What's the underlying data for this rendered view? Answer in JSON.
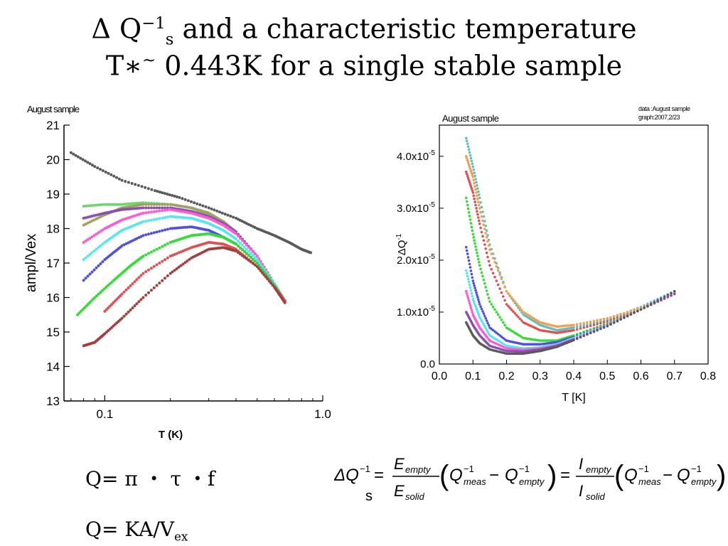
{
  "slide": {
    "title_line1_prefix": "Δ Q",
    "title_line1_sup": "−1",
    "title_line1_sub": "s",
    "title_line1_rest": " and a characteristic temperature",
    "title_line2_prefix": "T∗",
    "title_line2_sup": "~",
    "title_line2_rest": " 0.443K for a single stable sample"
  },
  "formulas": {
    "q1": "Q= π ・ τ ・f",
    "q2_main": "Q= KA/V",
    "q2_sub": "ex",
    "big": {
      "lhs": "ΔQ",
      "lhs_sup": "−1",
      "lhs_sub": "s",
      "eq": "=",
      "frac1_num": "E",
      "frac1_num_sub": "empty",
      "frac1_den": "E",
      "frac1_den_sub": "solid",
      "q_meas": "Q",
      "q_meas_sup": "−1",
      "q_meas_sub": "meas",
      "minus": "−",
      "q_empty": "Q",
      "q_empty_sup": "−1",
      "q_empty_sub": "empty",
      "frac2_num": "I",
      "frac2_num_sub": "empty",
      "frac2_den": "I",
      "frac2_den_sub": "solid"
    }
  },
  "colors": {
    "gray": "#5a5a5a",
    "green": "#6fd66f",
    "olive": "#a0a060",
    "purple": "#8a4fb0",
    "pink": "#ff5ad2",
    "cyan": "#55e6f0",
    "blue": "#5050e0",
    "lime": "#33dd33",
    "red": "#e05050",
    "brown": "#a04040",
    "orange": "#f0a050",
    "teal": "#5fbfc0"
  },
  "chart_data": [
    {
      "type": "scatter",
      "title": "August sample",
      "xlabel": "T (K)",
      "ylabel": "ampl/Vex",
      "xscale": "log",
      "xlim": [
        0.065,
        1.0
      ],
      "ylim": [
        13,
        21
      ],
      "xticks": [
        "0.1",
        "1.0"
      ],
      "yticks": [
        "13",
        "14",
        "15",
        "16",
        "17",
        "18",
        "19",
        "20",
        "21"
      ],
      "series": [
        {
          "color": "gray",
          "x": [
            0.07,
            0.09,
            0.12,
            0.17,
            0.22,
            0.3,
            0.4,
            0.5,
            0.6,
            0.7,
            0.8,
            0.88
          ],
          "y": [
            20.2,
            19.8,
            19.4,
            19.1,
            18.9,
            18.6,
            18.3,
            18.0,
            17.8,
            17.6,
            17.4,
            17.3
          ]
        },
        {
          "color": "green",
          "x": [
            0.08,
            0.1,
            0.12,
            0.15,
            0.2,
            0.25,
            0.3,
            0.35,
            0.4,
            0.5,
            0.6,
            0.67
          ],
          "y": [
            18.65,
            18.7,
            18.7,
            18.75,
            18.7,
            18.6,
            18.4,
            18.2,
            17.9,
            17.2,
            16.4,
            15.9
          ]
        },
        {
          "color": "olive",
          "x": [
            0.08,
            0.1,
            0.12,
            0.15,
            0.2,
            0.25,
            0.3,
            0.35,
            0.4,
            0.5,
            0.6,
            0.67
          ],
          "y": [
            18.1,
            18.4,
            18.6,
            18.7,
            18.7,
            18.6,
            18.45,
            18.2,
            17.9,
            17.2,
            16.4,
            15.9
          ]
        },
        {
          "color": "purple",
          "x": [
            0.08,
            0.1,
            0.12,
            0.15,
            0.2,
            0.25,
            0.3,
            0.35,
            0.4,
            0.5,
            0.6,
            0.67
          ],
          "y": [
            18.3,
            18.45,
            18.55,
            18.6,
            18.6,
            18.5,
            18.35,
            18.15,
            17.9,
            17.2,
            16.4,
            15.9
          ]
        },
        {
          "color": "pink",
          "x": [
            0.08,
            0.1,
            0.12,
            0.15,
            0.2,
            0.25,
            0.3,
            0.35,
            0.4,
            0.5,
            0.6,
            0.67
          ],
          "y": [
            17.6,
            18.0,
            18.25,
            18.45,
            18.55,
            18.45,
            18.3,
            18.1,
            17.85,
            17.2,
            16.4,
            15.9
          ]
        },
        {
          "color": "cyan",
          "x": [
            0.08,
            0.1,
            0.12,
            0.15,
            0.2,
            0.25,
            0.3,
            0.35,
            0.4,
            0.5,
            0.6,
            0.67
          ],
          "y": [
            17.1,
            17.6,
            17.95,
            18.2,
            18.35,
            18.3,
            18.15,
            17.95,
            17.7,
            17.1,
            16.4,
            15.9
          ]
        },
        {
          "color": "blue",
          "x": [
            0.08,
            0.1,
            0.12,
            0.15,
            0.2,
            0.25,
            0.3,
            0.35,
            0.4,
            0.5,
            0.6,
            0.67
          ],
          "y": [
            16.5,
            17.1,
            17.5,
            17.8,
            18.0,
            18.05,
            17.95,
            17.75,
            17.55,
            17.0,
            16.35,
            15.9
          ]
        },
        {
          "color": "lime",
          "x": [
            0.075,
            0.09,
            0.11,
            0.13,
            0.15,
            0.2,
            0.25,
            0.3,
            0.35,
            0.4,
            0.5,
            0.6,
            0.67
          ],
          "y": [
            15.5,
            16.0,
            16.5,
            16.9,
            17.2,
            17.6,
            17.8,
            17.85,
            17.75,
            17.55,
            17.0,
            16.35,
            15.9
          ]
        },
        {
          "color": "red",
          "x": [
            0.1,
            0.12,
            0.15,
            0.2,
            0.25,
            0.3,
            0.35,
            0.4,
            0.5,
            0.6,
            0.67
          ],
          "y": [
            15.6,
            16.1,
            16.7,
            17.2,
            17.45,
            17.6,
            17.55,
            17.4,
            16.9,
            16.3,
            15.9
          ]
        },
        {
          "color": "brown",
          "x": [
            0.08,
            0.09,
            0.1,
            0.12,
            0.15,
            0.2,
            0.25,
            0.3,
            0.35,
            0.4,
            0.5,
            0.6,
            0.67
          ],
          "y": [
            14.6,
            14.7,
            14.95,
            15.4,
            16.0,
            16.7,
            17.15,
            17.4,
            17.45,
            17.35,
            16.9,
            16.3,
            15.85
          ]
        }
      ]
    },
    {
      "type": "scatter",
      "title": "August sample",
      "note_line1": "data :August sample",
      "note_line2": "graph:2007,2/23",
      "xlabel": "T [K]",
      "ylabel": "ΔQ",
      "ylabel_sup": "-1",
      "xlim": [
        0.0,
        0.8
      ],
      "ylim": [
        0.0,
        4.6e-05
      ],
      "xticks": [
        "0.0",
        "0.1",
        "0.2",
        "0.3",
        "0.4",
        "0.5",
        "0.6",
        "0.7",
        "0.8"
      ],
      "yticks": [
        {
          "base": "0.0",
          "exp": ""
        },
        {
          "base": "1.0x10",
          "exp": "-5"
        },
        {
          "base": "2.0x10",
          "exp": "-5"
        },
        {
          "base": "3.0x10",
          "exp": "-5"
        },
        {
          "base": "4.0x10",
          "exp": "-5"
        }
      ],
      "series": [
        {
          "color": "teal",
          "x": [
            0.08,
            0.1,
            0.12,
            0.15,
            0.2,
            0.25,
            0.3,
            0.35,
            0.4,
            0.5,
            0.6,
            0.7
          ],
          "y": [
            4.35e-05,
            3.8e-05,
            3.2e-05,
            2.3e-05,
            1.4e-05,
            9.5e-06,
            7.5e-06,
            6.5e-06,
            7e-06,
            8.5e-06,
            1.1e-05,
            1.4e-05
          ]
        },
        {
          "color": "orange",
          "x": [
            0.08,
            0.1,
            0.12,
            0.15,
            0.2,
            0.25,
            0.3,
            0.35,
            0.4,
            0.5,
            0.6,
            0.7
          ],
          "y": [
            4e-05,
            3.6e-05,
            3e-05,
            2.2e-05,
            1.4e-05,
            1e-05,
            8e-06,
            7.2e-06,
            7.5e-06,
            8.8e-06,
            1.08e-05,
            1.35e-05
          ]
        },
        {
          "color": "red",
          "x": [
            0.08,
            0.1,
            0.12,
            0.15,
            0.2,
            0.25,
            0.3,
            0.35,
            0.4,
            0.5,
            0.6,
            0.7
          ],
          "y": [
            3.7e-05,
            3.3e-05,
            2.7e-05,
            1.9e-05,
            1.15e-05,
            8e-06,
            6.5e-06,
            6e-06,
            6.5e-06,
            8.2e-06,
            1.05e-05,
            1.35e-05
          ]
        },
        {
          "color": "lime",
          "x": [
            0.08,
            0.1,
            0.12,
            0.15,
            0.2,
            0.25,
            0.3,
            0.35,
            0.4,
            0.5,
            0.6,
            0.7
          ],
          "y": [
            3.2e-05,
            2.5e-05,
            1.9e-05,
            1.2e-05,
            7e-06,
            5e-06,
            4.5e-06,
            4.5e-06,
            5.5e-06,
            7.8e-06,
            1.05e-05,
            1.35e-05
          ]
        },
        {
          "color": "blue",
          "x": [
            0.08,
            0.1,
            0.12,
            0.15,
            0.2,
            0.25,
            0.3,
            0.35,
            0.4,
            0.5,
            0.6,
            0.7
          ],
          "y": [
            2.25e-05,
            1.6e-05,
            1.15e-05,
            7e-06,
            4.5e-06,
            3.8e-06,
            3.8e-06,
            4.2e-06,
            5.2e-06,
            7.6e-06,
            1.05e-05,
            1.35e-05
          ]
        },
        {
          "color": "cyan",
          "x": [
            0.08,
            0.1,
            0.12,
            0.15,
            0.2,
            0.25,
            0.3,
            0.35,
            0.4,
            0.5,
            0.6,
            0.7
          ],
          "y": [
            1.8e-05,
            1.25e-05,
            9e-06,
            5.5e-06,
            3.5e-06,
            3e-06,
            3.2e-06,
            3.8e-06,
            5e-06,
            7.5e-06,
            1.05e-05,
            1.35e-05
          ]
        },
        {
          "color": "pink",
          "x": [
            0.08,
            0.1,
            0.12,
            0.15,
            0.2,
            0.25,
            0.3,
            0.35,
            0.4,
            0.5,
            0.6,
            0.7
          ],
          "y": [
            1.4e-05,
            9.5e-06,
            7e-06,
            4.5e-06,
            3e-06,
            2.7e-06,
            3e-06,
            3.6e-06,
            4.8e-06,
            7.4e-06,
            1.05e-05,
            1.35e-05
          ]
        },
        {
          "color": "purple",
          "x": [
            0.08,
            0.1,
            0.12,
            0.15,
            0.2,
            0.25,
            0.3,
            0.35,
            0.4,
            0.5,
            0.6,
            0.7
          ],
          "y": [
            1e-05,
            7.5e-06,
            5.5e-06,
            3.5e-06,
            2.5e-06,
            2.4e-06,
            2.8e-06,
            3.5e-06,
            4.7e-06,
            7.4e-06,
            1.05e-05,
            1.35e-05
          ]
        },
        {
          "color": "gray",
          "x": [
            0.08,
            0.1,
            0.12,
            0.15,
            0.2,
            0.25,
            0.3,
            0.35,
            0.4,
            0.5,
            0.6,
            0.7
          ],
          "y": [
            8e-06,
            5.5e-06,
            4e-06,
            2.8e-06,
            2e-06,
            2e-06,
            2.5e-06,
            3.3e-06,
            4.6e-06,
            7.3e-06,
            1.05e-05,
            1.4e-05
          ]
        }
      ]
    }
  ]
}
